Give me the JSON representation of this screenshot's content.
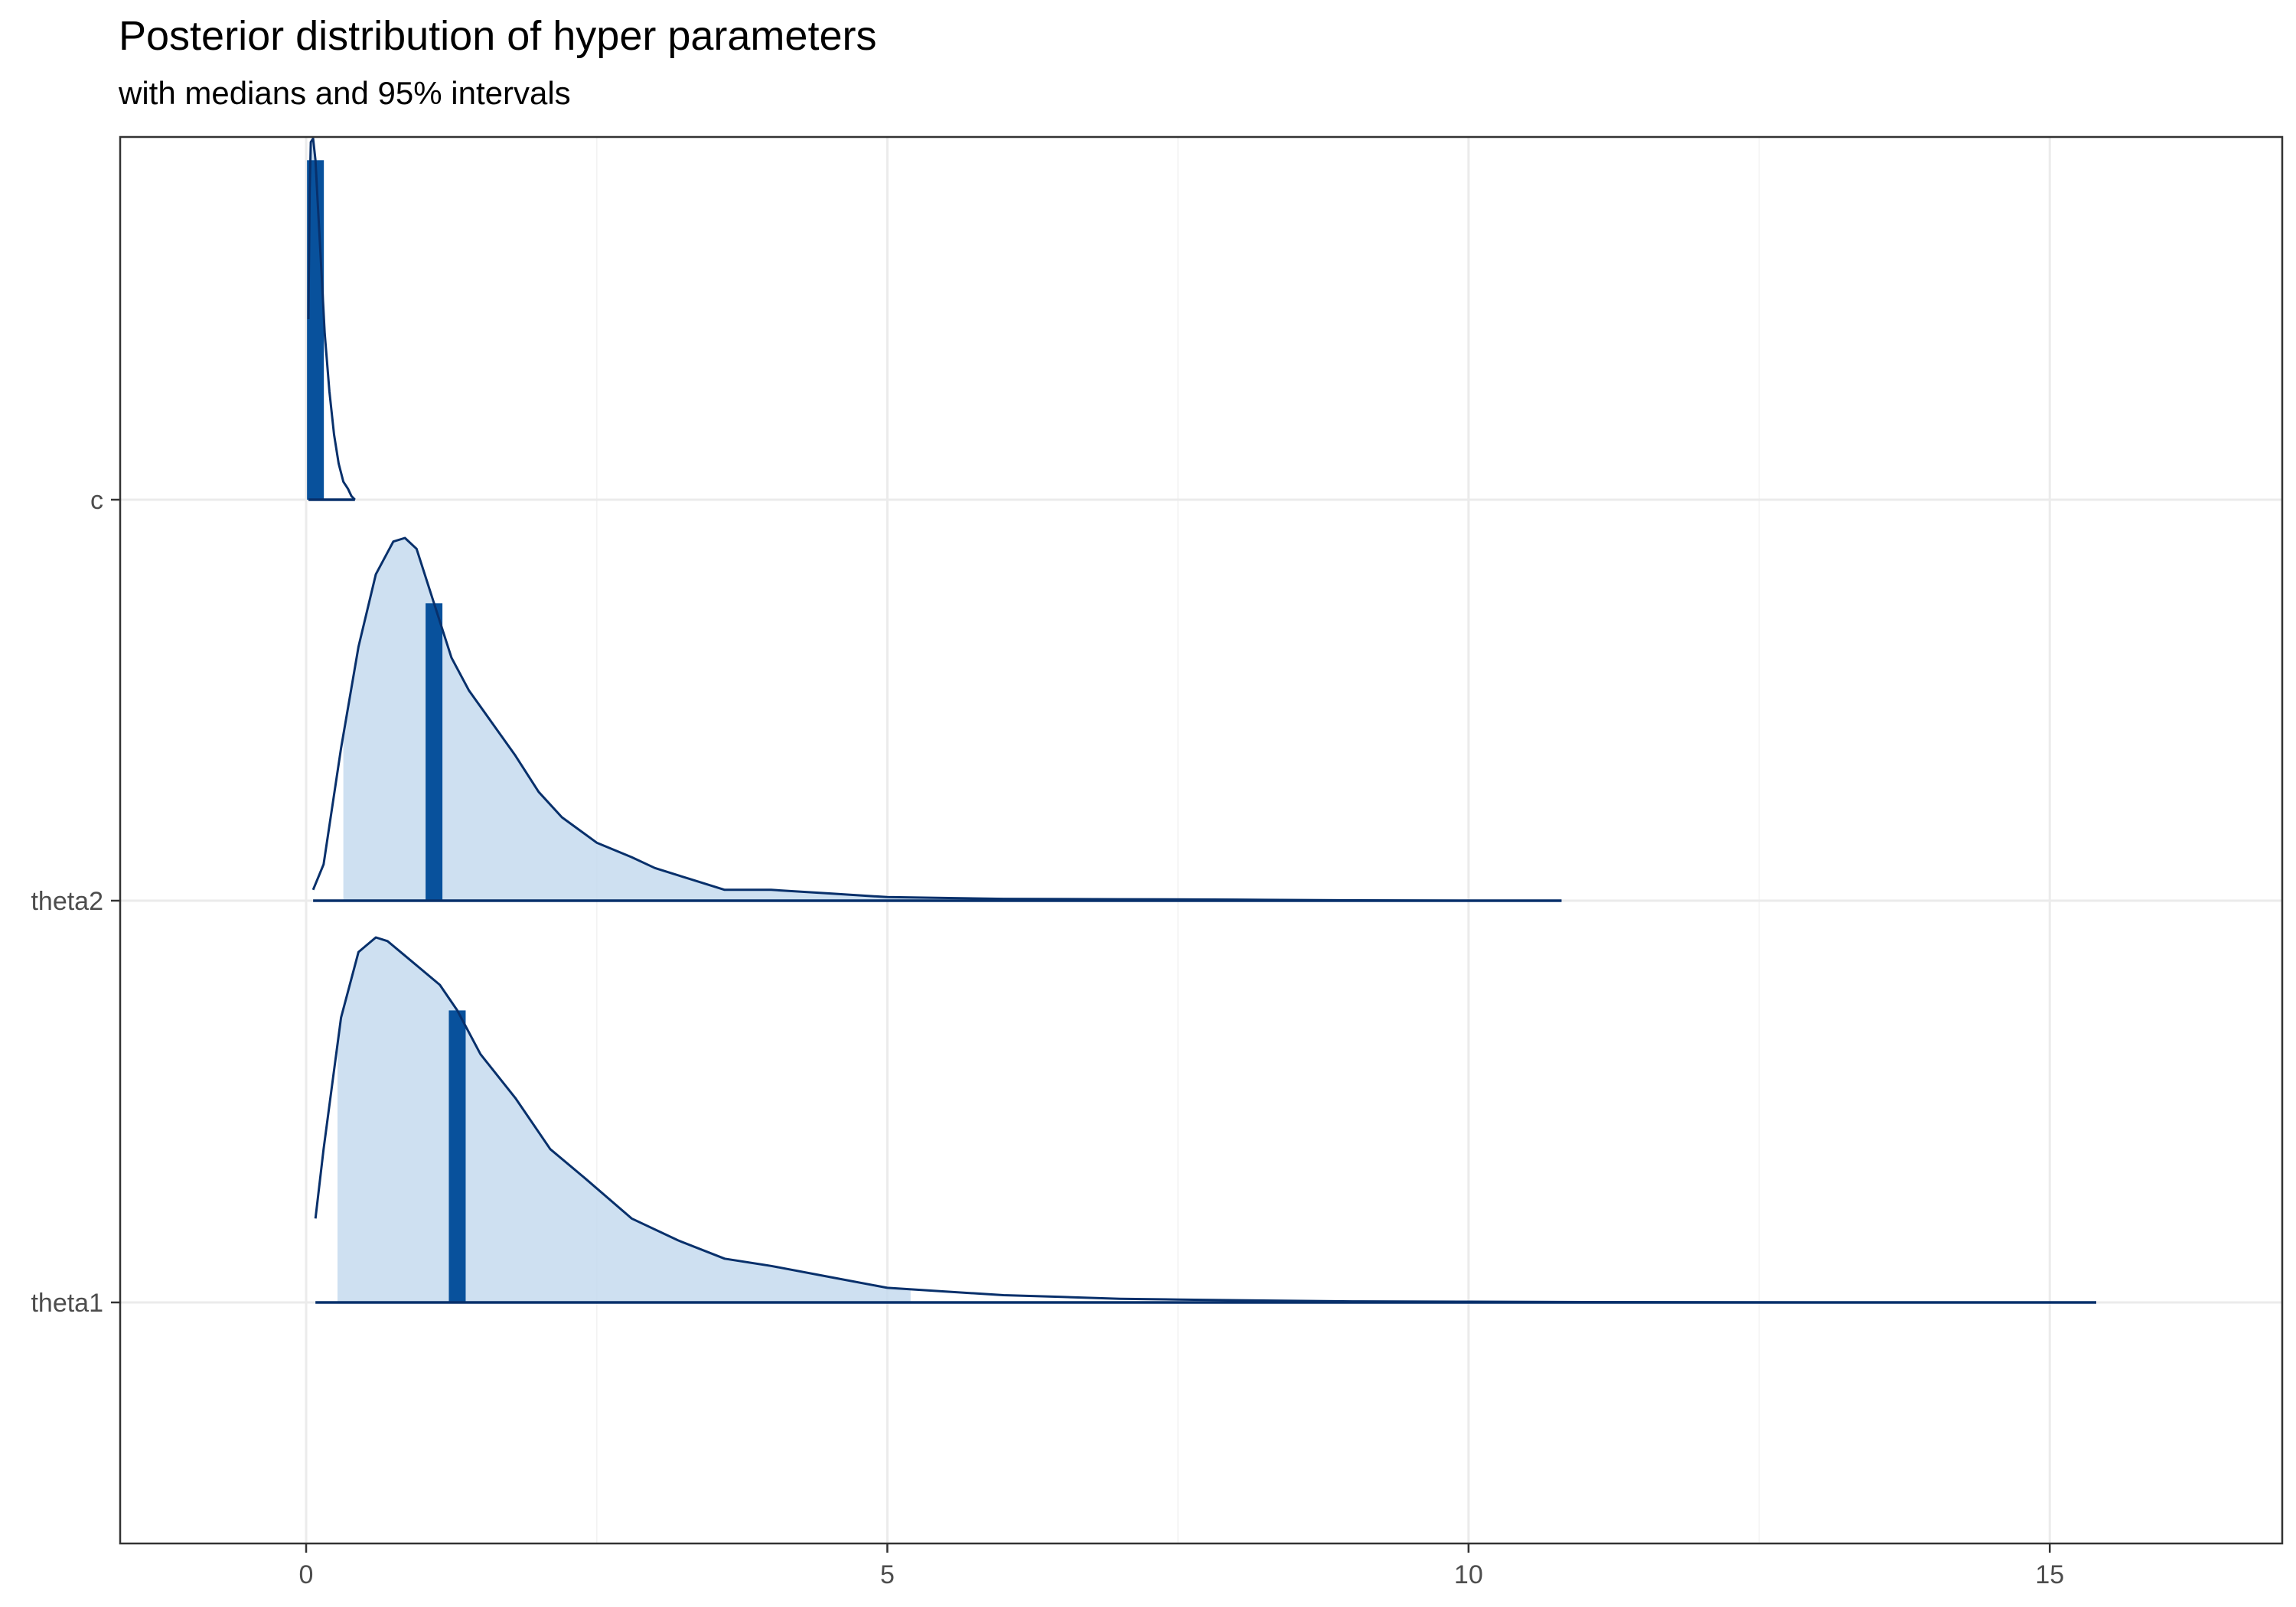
{
  "chart_data": {
    "type": "area",
    "subtype": "ridgeline density",
    "title": "Posterior distribution of hyper parameters",
    "subtitle": "with medians and 95% intervals",
    "xlabel": "",
    "ylabel": "",
    "xlim": [
      -1.6,
      17.0
    ],
    "x_ticks": [
      0,
      5,
      10,
      15
    ],
    "categories": [
      "c",
      "theta2",
      "theta1"
    ],
    "grid": true,
    "colors": {
      "line": "#08306b",
      "interval_fill": "#c6dbef",
      "median": "#08519c"
    },
    "series": [
      {
        "name": "c",
        "x_range": [
          0.02,
          0.42
        ],
        "median": 0.08,
        "interval_95": [
          0.0,
          0.14
        ],
        "density_x": [
          0.02,
          0.03,
          0.04,
          0.06,
          0.08,
          0.1,
          0.13,
          0.16,
          0.2,
          0.24,
          0.28,
          0.32,
          0.36,
          0.39,
          0.42
        ],
        "density_y": [
          0.5,
          0.85,
          0.99,
          1.0,
          0.94,
          0.82,
          0.64,
          0.46,
          0.3,
          0.18,
          0.1,
          0.05,
          0.03,
          0.01,
          0.0
        ]
      },
      {
        "name": "theta2",
        "x_range": [
          0.06,
          10.8
        ],
        "median": 1.1,
        "interval_95": [
          0.32,
          6.0
        ],
        "density_x": [
          0.06,
          0.15,
          0.3,
          0.45,
          0.6,
          0.75,
          0.85,
          0.95,
          1.1,
          1.25,
          1.4,
          1.6,
          1.8,
          2.0,
          2.2,
          2.5,
          2.8,
          3.0,
          3.3,
          3.6,
          4.0,
          4.5,
          5.0,
          6.0,
          7.0,
          8.0,
          9.0,
          10.0,
          10.8
        ],
        "density_y": [
          0.03,
          0.1,
          0.42,
          0.7,
          0.9,
          0.99,
          1.0,
          0.97,
          0.82,
          0.67,
          0.58,
          0.49,
          0.4,
          0.3,
          0.23,
          0.16,
          0.12,
          0.09,
          0.06,
          0.03,
          0.03,
          0.02,
          0.01,
          0.005,
          0.004,
          0.003,
          0.001,
          0.0,
          0.0
        ]
      },
      {
        "name": "theta1",
        "x_range": [
          0.08,
          15.4
        ],
        "median": 1.3,
        "interval_95": [
          0.27,
          5.2
        ],
        "density_x": [
          0.08,
          0.15,
          0.3,
          0.45,
          0.6,
          0.7,
          0.85,
          1.0,
          1.15,
          1.3,
          1.5,
          1.8,
          2.1,
          2.4,
          2.8,
          3.2,
          3.6,
          4.0,
          4.5,
          5.0,
          5.5,
          6.0,
          6.5,
          7.0,
          7.5,
          8.0,
          9.0,
          10.0,
          11.0,
          13.0,
          15.4
        ],
        "density_y": [
          0.23,
          0.42,
          0.78,
          0.96,
          1.0,
          0.99,
          0.95,
          0.91,
          0.87,
          0.8,
          0.68,
          0.56,
          0.42,
          0.34,
          0.23,
          0.17,
          0.12,
          0.1,
          0.07,
          0.04,
          0.03,
          0.02,
          0.015,
          0.01,
          0.008,
          0.006,
          0.003,
          0.002,
          0.001,
          0.0,
          0.0
        ]
      }
    ]
  }
}
